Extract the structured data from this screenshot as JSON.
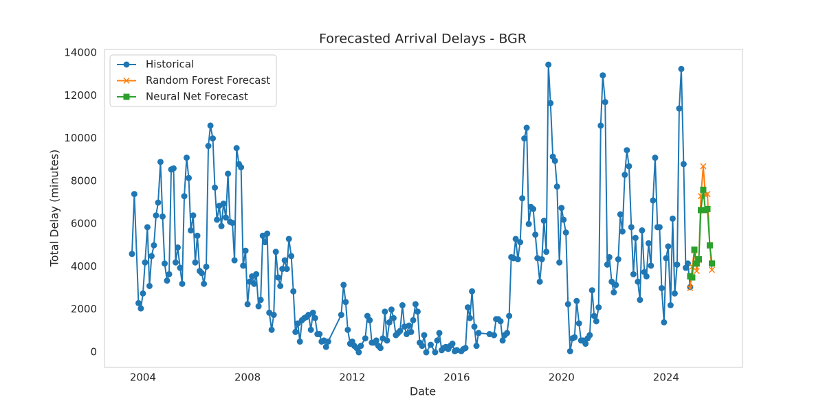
{
  "chart_data": {
    "type": "line",
    "title": "Forecasted Arrival Delays - BGR",
    "x_label": "Date",
    "y_label": "Total Delay (minutes)",
    "xlim": [
      2002.53,
      2026.92
    ],
    "xticks": [
      2004,
      2008,
      2012,
      2016,
      2020,
      2024
    ],
    "ylim": [
      -706,
      14162
    ],
    "yticks": [
      0,
      2000,
      4000,
      6000,
      8000,
      10000,
      12000,
      14000
    ],
    "grid": false,
    "legend": "upper-left",
    "series": [
      {
        "name": "Historical",
        "color": "#1f77b4",
        "marker": "circle",
        "x": [
          2003.58,
          2003.67,
          2003.83,
          2003.92,
          2004.0,
          2004.08,
          2004.17,
          2004.25,
          2004.33,
          2004.42,
          2004.5,
          2004.58,
          2004.67,
          2004.75,
          2004.83,
          2004.92,
          2005.0,
          2005.08,
          2005.17,
          2005.25,
          2005.33,
          2005.42,
          2005.5,
          2005.58,
          2005.67,
          2005.75,
          2005.83,
          2005.92,
          2006.0,
          2006.08,
          2006.17,
          2006.25,
          2006.33,
          2006.42,
          2006.5,
          2006.58,
          2006.67,
          2006.75,
          2006.83,
          2006.92,
          2007.0,
          2007.08,
          2007.17,
          2007.25,
          2007.33,
          2007.42,
          2007.5,
          2007.58,
          2007.67,
          2007.75,
          2007.83,
          2007.92,
          2008.0,
          2008.08,
          2008.17,
          2008.25,
          2008.33,
          2008.42,
          2008.5,
          2008.58,
          2008.67,
          2008.75,
          2008.83,
          2008.92,
          2009.0,
          2009.08,
          2009.17,
          2009.25,
          2009.33,
          2009.42,
          2009.5,
          2009.58,
          2009.67,
          2009.75,
          2009.83,
          2009.92,
          2010.0,
          2010.08,
          2010.17,
          2010.25,
          2010.33,
          2010.42,
          2010.5,
          2010.58,
          2010.67,
          2010.75,
          2010.83,
          2010.92,
          2011.0,
          2011.08,
          2011.58,
          2011.67,
          2011.75,
          2011.83,
          2011.92,
          2012.0,
          2012.08,
          2012.17,
          2012.25,
          2012.33,
          2012.5,
          2012.58,
          2012.67,
          2012.75,
          2012.83,
          2012.92,
          2013.0,
          2013.08,
          2013.17,
          2013.25,
          2013.33,
          2013.42,
          2013.5,
          2013.58,
          2013.67,
          2013.75,
          2013.83,
          2013.92,
          2014.0,
          2014.08,
          2014.17,
          2014.25,
          2014.33,
          2014.42,
          2014.5,
          2014.58,
          2014.67,
          2014.75,
          2014.83,
          2015.0,
          2015.17,
          2015.25,
          2015.33,
          2015.42,
          2015.5,
          2015.58,
          2015.67,
          2015.75,
          2015.83,
          2015.92,
          2016.0,
          2016.17,
          2016.25,
          2016.33,
          2016.42,
          2016.5,
          2016.58,
          2016.67,
          2016.75,
          2016.83,
          2017.25,
          2017.42,
          2017.5,
          2017.58,
          2017.67,
          2017.75,
          2017.83,
          2017.92,
          2018.0,
          2018.08,
          2018.17,
          2018.25,
          2018.33,
          2018.42,
          2018.5,
          2018.58,
          2018.67,
          2018.75,
          2018.83,
          2018.92,
          2019.0,
          2019.08,
          2019.17,
          2019.25,
          2019.33,
          2019.42,
          2019.5,
          2019.58,
          2019.67,
          2019.75,
          2019.83,
          2019.92,
          2020.0,
          2020.08,
          2020.17,
          2020.25,
          2020.33,
          2020.42,
          2020.5,
          2020.58,
          2020.67,
          2020.75,
          2020.83,
          2020.92,
          2021.0,
          2021.08,
          2021.17,
          2021.25,
          2021.33,
          2021.42,
          2021.5,
          2021.58,
          2021.67,
          2021.75,
          2021.83,
          2021.92,
          2022.0,
          2022.08,
          2022.17,
          2022.25,
          2022.33,
          2022.42,
          2022.5,
          2022.58,
          2022.67,
          2022.75,
          2022.83,
          2022.92,
          2023.0,
          2023.08,
          2023.17,
          2023.25,
          2023.33,
          2023.42,
          2023.5,
          2023.58,
          2023.67,
          2023.75,
          2023.83,
          2023.92,
          2024.0,
          2024.08,
          2024.17,
          2024.25,
          2024.33,
          2024.42,
          2024.5,
          2024.58,
          2024.67,
          2024.75,
          2024.83,
          2024.92
        ],
        "values": [
          4600,
          7400,
          2300,
          2050,
          2750,
          4200,
          5850,
          3100,
          4500,
          5000,
          6400,
          7000,
          8900,
          6350,
          4150,
          3350,
          3650,
          8550,
          8600,
          4200,
          4900,
          3950,
          3200,
          7300,
          9100,
          8150,
          5700,
          6400,
          4200,
          5450,
          3800,
          3700,
          3200,
          4000,
          9650,
          10600,
          10000,
          7700,
          6200,
          6850,
          5900,
          6950,
          6300,
          8350,
          6100,
          6050,
          4300,
          9550,
          8800,
          8650,
          4050,
          4750,
          2250,
          3300,
          3550,
          3200,
          3650,
          2150,
          2450,
          5450,
          5150,
          5550,
          1850,
          1050,
          1750,
          4700,
          3500,
          3100,
          3900,
          4300,
          3900,
          5300,
          4500,
          2850,
          950,
          1350,
          500,
          1500,
          1600,
          1650,
          1750,
          1050,
          1850,
          1600,
          850,
          850,
          500,
          550,
          250,
          500,
          1750,
          3150,
          2350,
          1050,
          400,
          500,
          300,
          200,
          0,
          300,
          650,
          1700,
          1500,
          450,
          450,
          550,
          300,
          200,
          650,
          1900,
          550,
          1400,
          2000,
          1600,
          800,
          900,
          1000,
          2200,
          1200,
          850,
          1250,
          950,
          1500,
          2250,
          1900,
          450,
          300,
          800,
          0,
          350,
          0,
          550,
          900,
          100,
          200,
          250,
          150,
          300,
          400,
          50,
          100,
          50,
          150,
          200,
          2100,
          1600,
          2850,
          1200,
          300,
          900,
          850,
          800,
          1550,
          1550,
          1450,
          550,
          800,
          900,
          1700,
          4450,
          4400,
          5300,
          4350,
          5150,
          7200,
          10000,
          10500,
          6000,
          6800,
          6700,
          5500,
          4400,
          3300,
          4350,
          6150,
          4700,
          13450,
          11650,
          9150,
          8950,
          7750,
          4200,
          6750,
          6200,
          5600,
          2250,
          50,
          650,
          700,
          2400,
          1350,
          550,
          550,
          400,
          650,
          800,
          2900,
          1700,
          1450,
          2100,
          10600,
          12950,
          11700,
          4100,
          4450,
          3300,
          2800,
          3150,
          4350,
          6450,
          5650,
          8300,
          9450,
          8700,
          5850,
          3650,
          5350,
          3300,
          2450,
          5700,
          3750,
          3550,
          5100,
          4050,
          7100,
          9100,
          5850,
          5850,
          3000,
          1400,
          4400,
          4950,
          2200,
          6250,
          2750,
          4100,
          11400,
          13250,
          8800,
          3950,
          4150,
          3050
        ]
      },
      {
        "name": "Random Forest Forecast",
        "color": "#ff7f0e",
        "marker": "x",
        "x": [
          2024.92,
          2025.0,
          2025.08,
          2025.17,
          2025.25,
          2025.33,
          2025.42,
          2025.5,
          2025.58,
          2025.67,
          2025.75
        ],
        "values": [
          3000,
          4000,
          4750,
          3800,
          4300,
          7300,
          8700,
          7350,
          7400,
          5000,
          3850
        ]
      },
      {
        "name": "Neural Net Forecast",
        "color": "#2ca02c",
        "marker": "square",
        "x": [
          2024.92,
          2025.0,
          2025.08,
          2025.17,
          2025.25,
          2025.33,
          2025.42,
          2025.5,
          2025.58,
          2025.67,
          2025.75
        ],
        "values": [
          3550,
          3500,
          4800,
          4150,
          4350,
          6650,
          7600,
          6650,
          6700,
          5000,
          4150
        ]
      }
    ]
  }
}
